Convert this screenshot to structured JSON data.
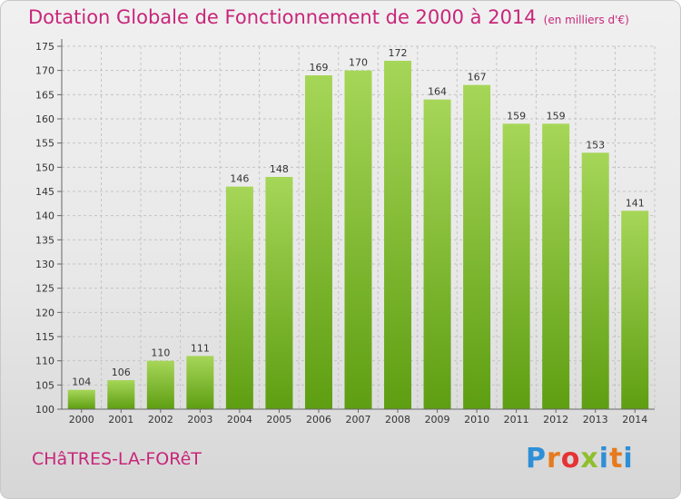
{
  "header": {
    "title": "Dotation Globale de Fonctionnement de 2000 à 2014",
    "unit": "(en milliers d'€)"
  },
  "footer": {
    "commune": "CHâTRES-LA-FORêT",
    "logo_letters": [
      "P",
      "r",
      "o",
      "x",
      "i",
      "t",
      "i"
    ],
    "logo_colors": [
      "#2e8fd6",
      "#e67a1e",
      "#e63333",
      "#8fbf2a",
      "#2e8fd6",
      "#e67a1e",
      "#2e8fd6"
    ]
  },
  "chart_data": {
    "type": "bar",
    "title": "Dotation Globale de Fonctionnement de 2000 à 2014",
    "subtitle": "(en milliers d'€)",
    "xlabel": "",
    "ylabel": "",
    "categories": [
      "2000",
      "2001",
      "2002",
      "2003",
      "2004",
      "2005",
      "2006",
      "2007",
      "2008",
      "2009",
      "2010",
      "2011",
      "2012",
      "2013",
      "2014"
    ],
    "values": [
      104,
      106,
      110,
      111,
      146,
      148,
      169,
      170,
      172,
      164,
      167,
      159,
      159,
      153,
      141
    ],
    "ylim": [
      100,
      175
    ],
    "yticks": [
      100,
      105,
      110,
      115,
      120,
      125,
      130,
      135,
      140,
      145,
      150,
      155,
      160,
      165,
      170,
      175
    ],
    "grid": true,
    "colors": {
      "bar_light": "#a6d658",
      "bar_dark": "#5e9e12",
      "label": "#333333"
    }
  }
}
